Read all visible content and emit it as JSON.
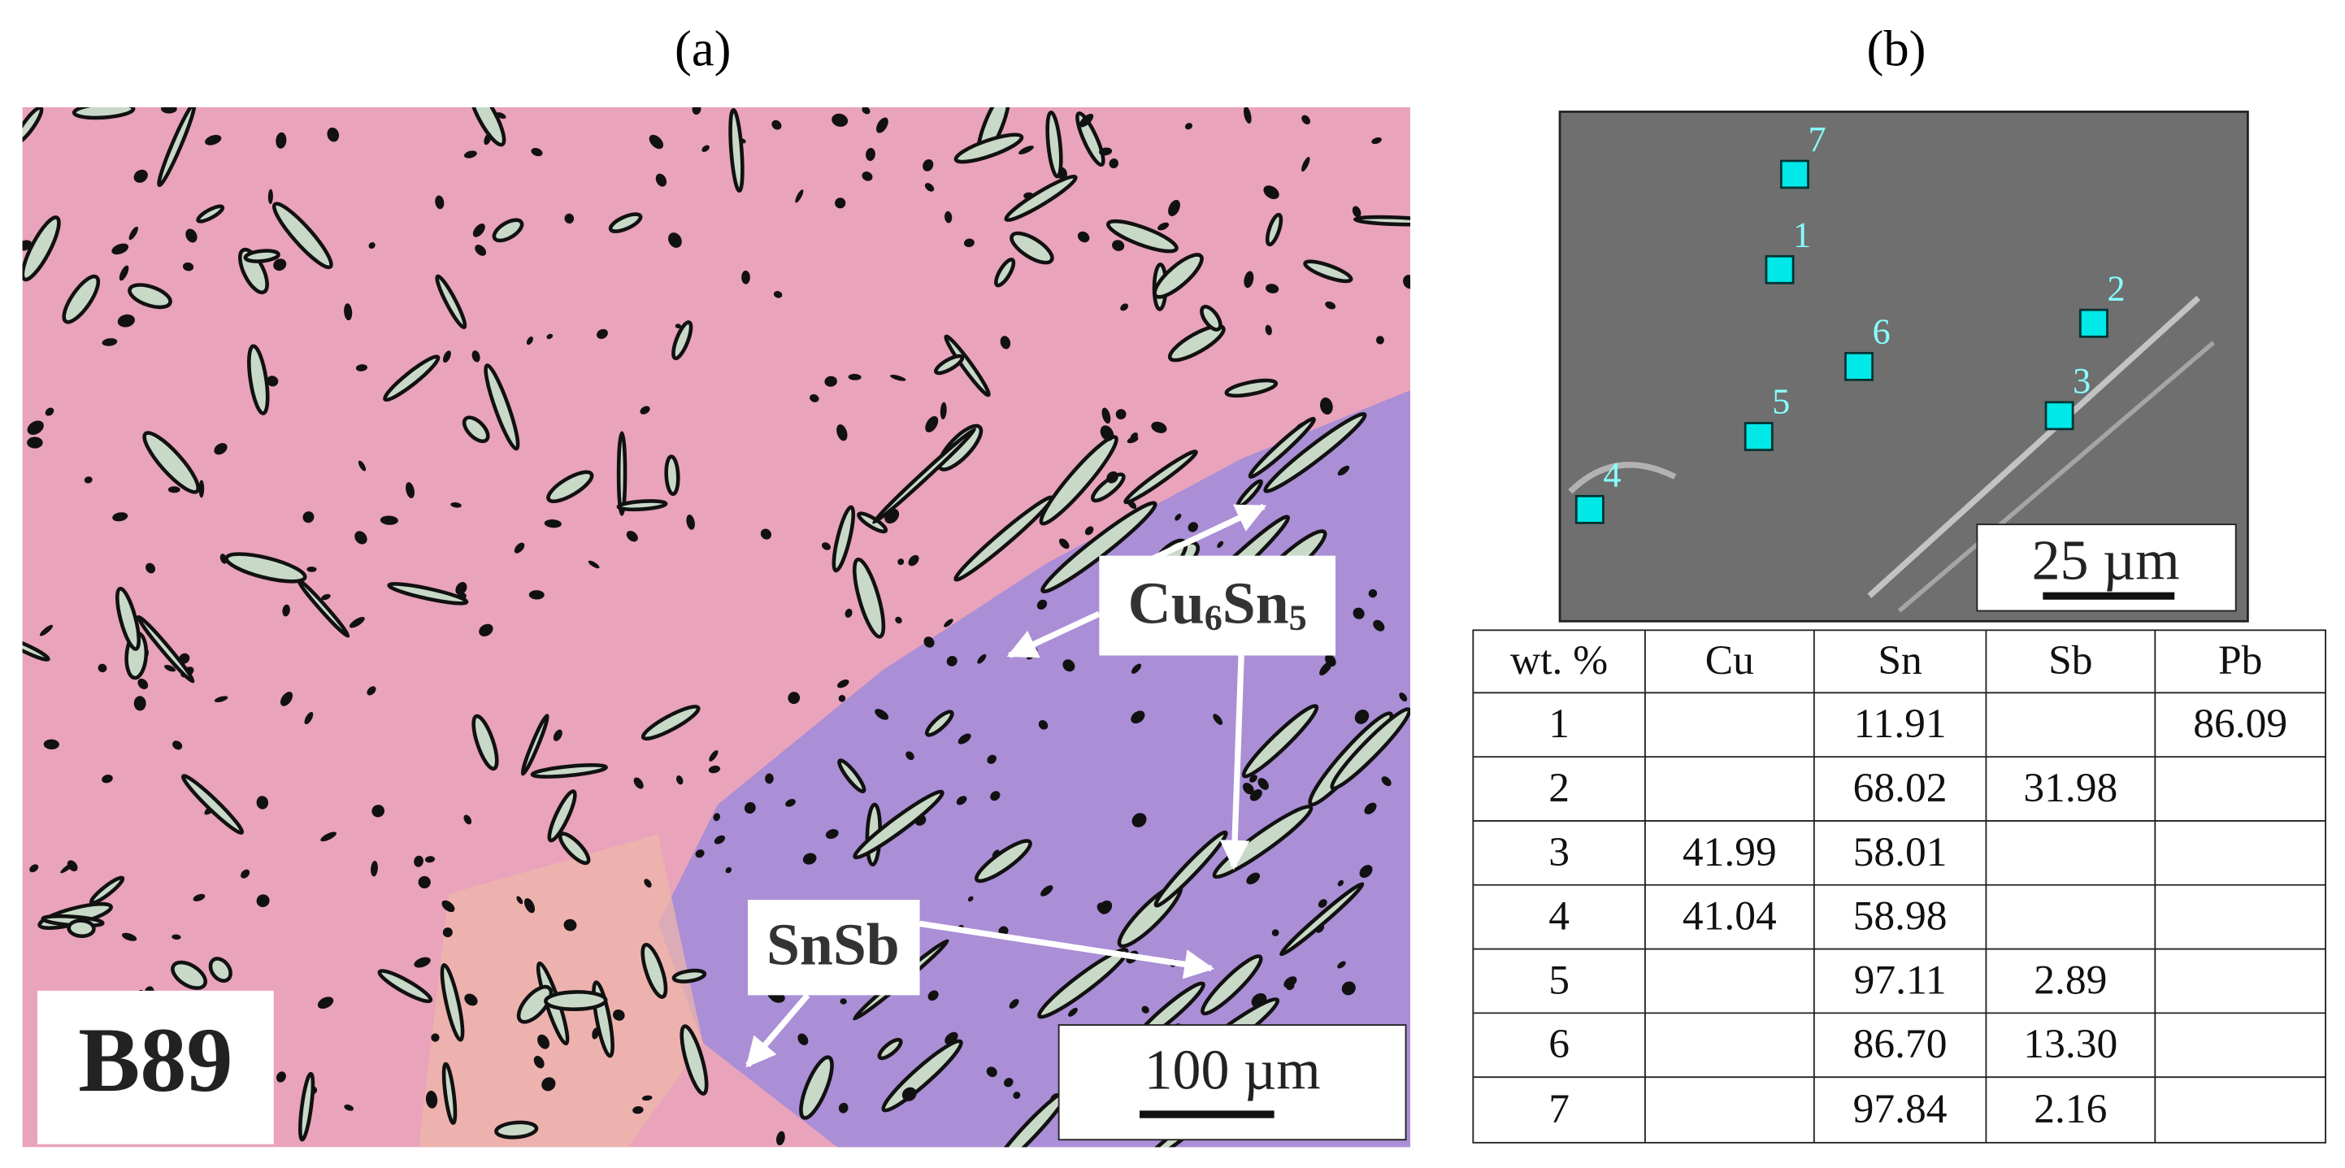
{
  "panel_a": {
    "label": "(a)",
    "sample": "B89",
    "scale": "100 µm",
    "phase_labels": [
      [
        "Cu",
        "6",
        "Sn",
        "5"
      ],
      [
        "SnSb"
      ]
    ]
  },
  "panel_b": {
    "label": "(b)",
    "scale": "25 µm",
    "points": [
      "1",
      "2",
      "3",
      "4",
      "5",
      "6",
      "7"
    ]
  },
  "table": {
    "headers": [
      "wt. %",
      "Cu",
      "Sn",
      "Sb",
      "Pb"
    ],
    "rows": [
      [
        "1",
        null,
        "11.91",
        null,
        "86.09"
      ],
      [
        "2",
        null,
        "68.02",
        "31.98",
        null
      ],
      [
        "3",
        "41.99",
        "58.01",
        null,
        null
      ],
      [
        "4",
        "41.04",
        "58.98",
        null,
        null
      ],
      [
        "5",
        null,
        "97.11",
        "2.89",
        null
      ],
      [
        "6",
        null,
        "86.70",
        "13.30",
        null
      ],
      [
        "7",
        null,
        "97.84",
        "2.16",
        null
      ]
    ]
  }
}
